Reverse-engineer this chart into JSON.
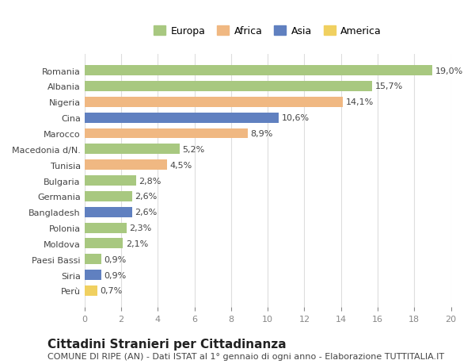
{
  "categories": [
    "Romania",
    "Albania",
    "Nigeria",
    "Cina",
    "Marocco",
    "Macedonia d/N.",
    "Tunisia",
    "Bulgaria",
    "Germania",
    "Bangladesh",
    "Polonia",
    "Moldova",
    "Paesi Bassi",
    "Siria",
    "Perù"
  ],
  "values": [
    19.0,
    15.7,
    14.1,
    10.6,
    8.9,
    5.2,
    4.5,
    2.8,
    2.6,
    2.6,
    2.3,
    2.1,
    0.9,
    0.9,
    0.7
  ],
  "labels": [
    "19,0%",
    "15,7%",
    "14,1%",
    "10,6%",
    "8,9%",
    "5,2%",
    "4,5%",
    "2,8%",
    "2,6%",
    "2,6%",
    "2,3%",
    "2,1%",
    "0,9%",
    "0,9%",
    "0,7%"
  ],
  "continents": [
    "Europa",
    "Europa",
    "Africa",
    "Asia",
    "Africa",
    "Europa",
    "Africa",
    "Europa",
    "Europa",
    "Asia",
    "Europa",
    "Europa",
    "Europa",
    "Asia",
    "America"
  ],
  "colors": {
    "Europa": "#a8c880",
    "Africa": "#f0b882",
    "Asia": "#6080c0",
    "America": "#f0d060"
  },
  "legend_order": [
    "Europa",
    "Africa",
    "Asia",
    "America"
  ],
  "title": "Cittadini Stranieri per Cittadinanza",
  "subtitle": "COMUNE DI RIPE (AN) - Dati ISTAT al 1° gennaio di ogni anno - Elaborazione TUTTITALIA.IT",
  "xlim": [
    0,
    20
  ],
  "xticks": [
    0,
    2,
    4,
    6,
    8,
    10,
    12,
    14,
    16,
    18,
    20
  ],
  "background_color": "#ffffff",
  "grid_color": "#dddddd",
  "bar_height": 0.65,
  "title_fontsize": 11,
  "subtitle_fontsize": 8,
  "label_fontsize": 8,
  "tick_fontsize": 8,
  "legend_fontsize": 9
}
